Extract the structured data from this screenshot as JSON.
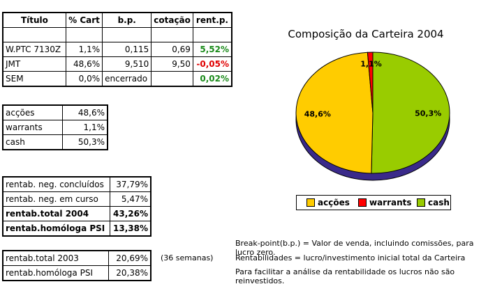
{
  "portfolio": {
    "headers": [
      "Título",
      "% Cart",
      "b.p.",
      "cotação",
      "rent.p."
    ],
    "rows": [
      {
        "titulo": "W.PTC 7130Z",
        "cart": "1,1%",
        "bp": "0,115",
        "cot": "0,69",
        "rent": "5,52%",
        "sign": "pos"
      },
      {
        "titulo": "JMT",
        "cart": "48,6%",
        "bp": "9,510",
        "cot": "9,50",
        "rent": "-0,05%",
        "sign": "neg"
      },
      {
        "titulo": "SEM",
        "cart": "0,0%",
        "bp": "encerrado",
        "cot": "",
        "rent": "0,02%",
        "sign": "pos"
      }
    ]
  },
  "allocation": [
    {
      "label": "acções",
      "value": "48,6%"
    },
    {
      "label": "warrants",
      "value": "1,1%"
    },
    {
      "label": "cash",
      "value": "50,3%"
    }
  ],
  "returns": [
    {
      "label": "rentab. neg. concluídos",
      "value": "37,79%",
      "bold": false
    },
    {
      "label": "rentab. neg. em curso",
      "value": "5,47%",
      "bold": false
    },
    {
      "label": "rentab.total 2004",
      "value": "43,26%",
      "bold": true
    },
    {
      "label": "rentab.homóloga PSI",
      "value": "13,38%",
      "bold": true
    }
  ],
  "previous": [
    {
      "label": "rentab.total 2003",
      "value": "20,69%"
    },
    {
      "label": "rentab.homóloga PSI",
      "value": "20,38%"
    }
  ],
  "weeks_note": "(36 semanas)",
  "notes": [
    "Break-point(b.p.) = Valor de venda, incluindo comissões, para lucro zero.",
    "Rentabilidades = lucro/investimento inicial total da Carteira",
    "Para facilitar a análise da rentabilidade os lucros não são reinvestidos."
  ],
  "chart_data": {
    "type": "pie",
    "title": "Composição da Carteira 2004",
    "slices": [
      {
        "name": "acções",
        "value": 48.6,
        "label": "48,6%",
        "color": "#ffcc00"
      },
      {
        "name": "warrants",
        "value": 1.1,
        "label": "1,1%",
        "color": "#ff0000"
      },
      {
        "name": "cash",
        "value": 50.3,
        "label": "50,3%",
        "color": "#99cc00"
      }
    ],
    "legend_position": "bottom"
  }
}
